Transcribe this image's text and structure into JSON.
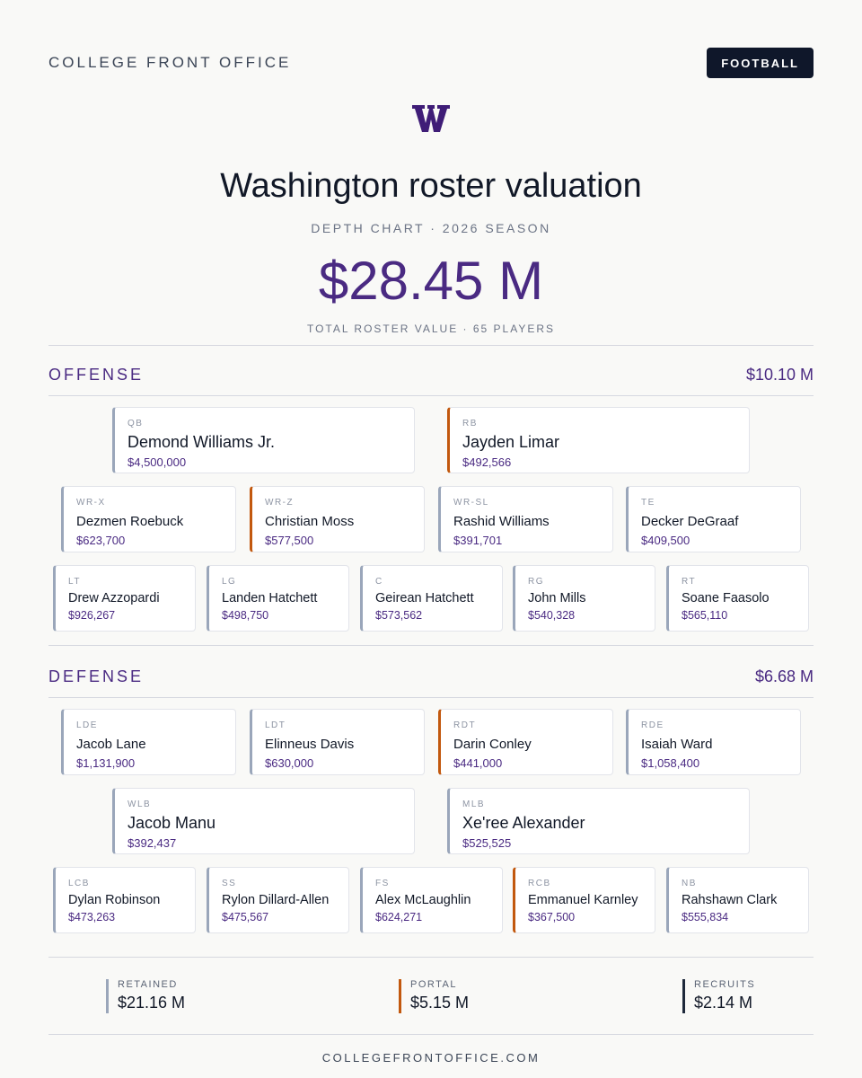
{
  "header": {
    "brand": "COLLEGE FRONT OFFICE",
    "sport": "FOOTBALL"
  },
  "logo": {
    "icon": "washington-w-logo",
    "color": "#3f1d77"
  },
  "title": "Washington roster valuation",
  "subtitle": "DEPTH CHART · 2026 SEASON",
  "total": {
    "value": "$28.45 M",
    "caption": "TOTAL ROSTER VALUE · 65 PLAYERS"
  },
  "colors": {
    "accent": "#4a2a82",
    "retained": "#9aa6ba",
    "portal": "#c2580e",
    "recruits": "#1e293b"
  },
  "offense": {
    "label": "OFFENSE",
    "value": "$10.10 M",
    "players": [
      {
        "pos": "QB",
        "name": "Demond Williams Jr.",
        "value": "$4,500,000",
        "source": "retained"
      },
      {
        "pos": "RB",
        "name": "Jayden Limar",
        "value": "$492,566",
        "source": "portal"
      },
      {
        "pos": "WR-X",
        "name": "Dezmen Roebuck",
        "value": "$623,700",
        "source": "retained"
      },
      {
        "pos": "WR-Z",
        "name": "Christian Moss",
        "value": "$577,500",
        "source": "portal"
      },
      {
        "pos": "WR-SL",
        "name": "Rashid Williams",
        "value": "$391,701",
        "source": "retained"
      },
      {
        "pos": "TE",
        "name": "Decker DeGraaf",
        "value": "$409,500",
        "source": "retained"
      },
      {
        "pos": "LT",
        "name": "Drew Azzopardi",
        "value": "$926,267",
        "source": "retained"
      },
      {
        "pos": "LG",
        "name": "Landen Hatchett",
        "value": "$498,750",
        "source": "retained"
      },
      {
        "pos": "C",
        "name": "Geirean Hatchett",
        "value": "$573,562",
        "source": "retained"
      },
      {
        "pos": "RG",
        "name": "John Mills",
        "value": "$540,328",
        "source": "retained"
      },
      {
        "pos": "RT",
        "name": "Soane Faasolo",
        "value": "$565,110",
        "source": "retained"
      }
    ]
  },
  "defense": {
    "label": "DEFENSE",
    "value": "$6.68 M",
    "players": [
      {
        "pos": "LDE",
        "name": "Jacob Lane",
        "value": "$1,131,900",
        "source": "retained"
      },
      {
        "pos": "LDT",
        "name": "Elinneus Davis",
        "value": "$630,000",
        "source": "retained"
      },
      {
        "pos": "RDT",
        "name": "Darin Conley",
        "value": "$441,000",
        "source": "portal"
      },
      {
        "pos": "RDE",
        "name": "Isaiah Ward",
        "value": "$1,058,400",
        "source": "retained"
      },
      {
        "pos": "WLB",
        "name": "Jacob Manu",
        "value": "$392,437",
        "source": "retained"
      },
      {
        "pos": "MLB",
        "name": "Xe'ree Alexander",
        "value": "$525,525",
        "source": "retained"
      },
      {
        "pos": "LCB",
        "name": "Dylan Robinson",
        "value": "$473,263",
        "source": "retained"
      },
      {
        "pos": "SS",
        "name": "Rylon Dillard-Allen",
        "value": "$475,567",
        "source": "retained"
      },
      {
        "pos": "FS",
        "name": "Alex McLaughlin",
        "value": "$624,271",
        "source": "retained"
      },
      {
        "pos": "RCB",
        "name": "Emmanuel Karnley",
        "value": "$367,500",
        "source": "portal"
      },
      {
        "pos": "NB",
        "name": "Rahshawn Clark",
        "value": "$555,834",
        "source": "retained"
      }
    ]
  },
  "summary": {
    "retained": {
      "label": "RETAINED",
      "value": "$21.16 M"
    },
    "portal": {
      "label": "PORTAL",
      "value": "$5.15 M"
    },
    "recruits": {
      "label": "RECRUITS",
      "value": "$2.14 M"
    }
  },
  "footer": "COLLEGEFRONTOFFICE.COM"
}
